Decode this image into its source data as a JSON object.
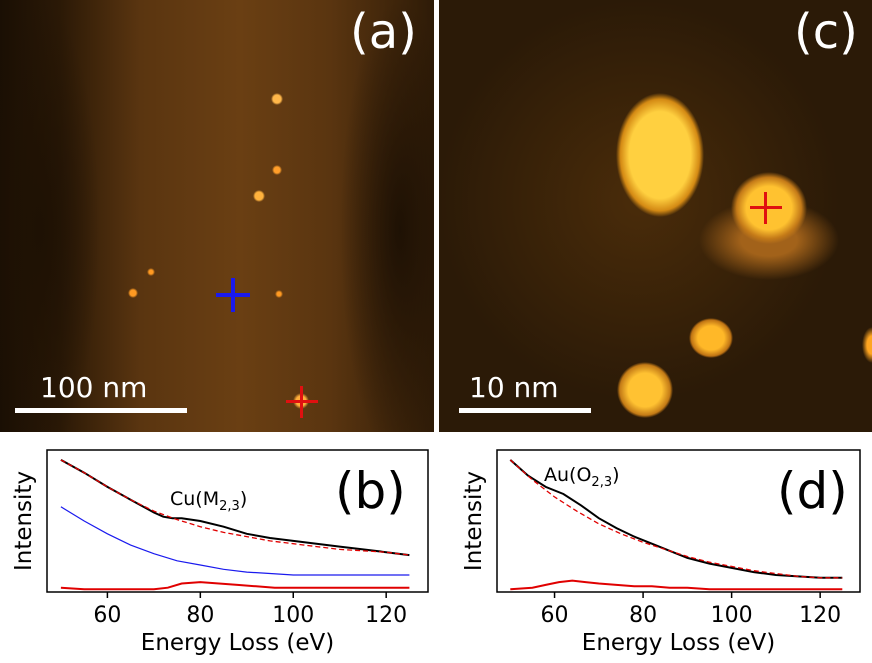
{
  "panels": {
    "a": {
      "label": "(a)",
      "scalebar": "100 nm"
    },
    "c": {
      "label": "(c)",
      "scalebar": "10 nm"
    }
  },
  "colors": {
    "black_spectrum": "#000000",
    "fit": "#e00000",
    "blue_spectrum": "#1a1aee",
    "red_spectrum": "#e00000",
    "cross_blue": "#1a1aee",
    "cross_red": "#e01010"
  },
  "chart_data": [
    {
      "type": "line",
      "panel_label": "(b)",
      "annotation": "Cu(M₂,₃)",
      "annotation_main": "Cu(M",
      "annotation_sub": "2,3",
      "annotation_end": ")",
      "xlabel": "Energy Loss (eV)",
      "ylabel": "Intensity",
      "xlim": [
        47,
        129
      ],
      "ylim": [
        0,
        1
      ],
      "xticks": [
        "60",
        "80",
        "100",
        "120"
      ],
      "xtick_values": [
        60,
        80,
        100,
        120
      ],
      "series": [
        {
          "style": "black",
          "x": [
            50,
            55,
            60,
            65,
            70,
            72,
            74,
            76,
            78,
            80,
            85,
            90,
            95,
            100,
            105,
            110,
            115,
            120,
            125
          ],
          "y": [
            0.93,
            0.84,
            0.74,
            0.65,
            0.56,
            0.53,
            0.52,
            0.52,
            0.51,
            0.5,
            0.46,
            0.41,
            0.38,
            0.36,
            0.34,
            0.32,
            0.3,
            0.28,
            0.26
          ]
        },
        {
          "style": "fit",
          "x": [
            50,
            55,
            60,
            65,
            70,
            75,
            80,
            85,
            90,
            95,
            100,
            105,
            110,
            115,
            120,
            125
          ],
          "y": [
            0.93,
            0.84,
            0.74,
            0.65,
            0.57,
            0.51,
            0.46,
            0.42,
            0.39,
            0.36,
            0.34,
            0.32,
            0.3,
            0.29,
            0.28,
            0.26
          ]
        },
        {
          "style": "blue",
          "x": [
            50,
            55,
            60,
            65,
            70,
            75,
            80,
            85,
            90,
            95,
            100,
            105,
            110,
            115,
            120,
            125
          ],
          "y": [
            0.6,
            0.5,
            0.41,
            0.33,
            0.27,
            0.22,
            0.19,
            0.16,
            0.14,
            0.13,
            0.12,
            0.12,
            0.12,
            0.12,
            0.12,
            0.12
          ]
        },
        {
          "style": "red",
          "x": [
            50,
            55,
            60,
            65,
            70,
            73,
            76,
            80,
            84,
            88,
            92,
            96,
            100,
            105,
            110,
            115,
            120,
            125
          ],
          "y": [
            0.03,
            0.02,
            0.02,
            0.02,
            0.02,
            0.03,
            0.06,
            0.07,
            0.06,
            0.05,
            0.04,
            0.03,
            0.03,
            0.03,
            0.03,
            0.03,
            0.03,
            0.03
          ]
        }
      ]
    },
    {
      "type": "line",
      "panel_label": "(d)",
      "annotation": "Au(O₂,₃)",
      "annotation_main": "Au(O",
      "annotation_sub": "2,3",
      "annotation_end": ")",
      "xlabel": "Energy Loss (eV)",
      "ylabel": "Intensity",
      "xlim": [
        47,
        129
      ],
      "ylim": [
        0,
        1
      ],
      "xticks": [
        "60",
        "80",
        "100",
        "120"
      ],
      "xtick_values": [
        60,
        80,
        100,
        120
      ],
      "series": [
        {
          "style": "black",
          "x": [
            50,
            54,
            58,
            62,
            66,
            70,
            74,
            78,
            82,
            86,
            90,
            95,
            100,
            105,
            110,
            115,
            120,
            125
          ],
          "y": [
            0.93,
            0.82,
            0.74,
            0.69,
            0.61,
            0.52,
            0.45,
            0.39,
            0.34,
            0.29,
            0.24,
            0.2,
            0.17,
            0.14,
            0.12,
            0.11,
            0.1,
            0.1
          ]
        },
        {
          "style": "fit",
          "x": [
            50,
            55,
            60,
            65,
            70,
            75,
            80,
            85,
            90,
            95,
            100,
            105,
            110,
            115,
            120,
            125
          ],
          "y": [
            0.93,
            0.79,
            0.67,
            0.57,
            0.48,
            0.41,
            0.35,
            0.3,
            0.25,
            0.21,
            0.18,
            0.15,
            0.13,
            0.11,
            0.1,
            0.1
          ]
        },
        {
          "style": "red",
          "x": [
            50,
            55,
            58,
            61,
            64,
            67,
            70,
            74,
            78,
            82,
            86,
            90,
            95,
            100,
            110,
            120,
            125
          ],
          "y": [
            0.02,
            0.03,
            0.05,
            0.07,
            0.08,
            0.07,
            0.06,
            0.05,
            0.04,
            0.04,
            0.03,
            0.03,
            0.02,
            0.02,
            0.02,
            0.02,
            0.02
          ]
        }
      ]
    }
  ]
}
